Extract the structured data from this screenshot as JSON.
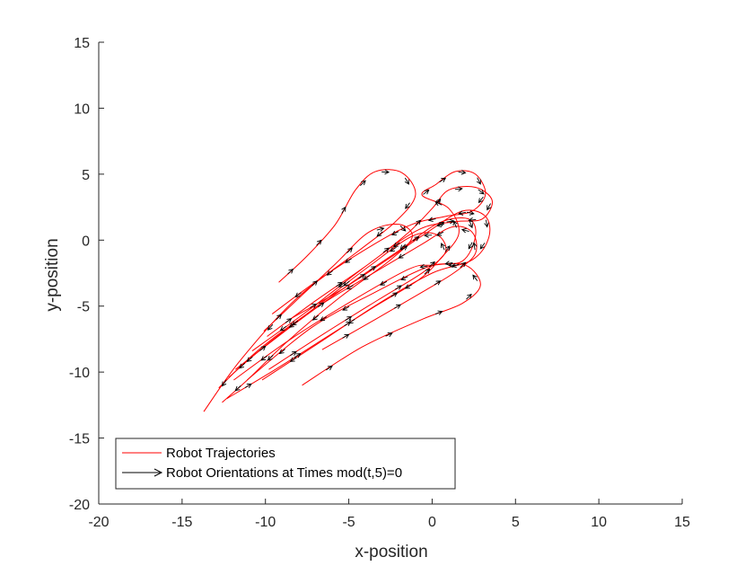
{
  "chart_data": {
    "type": "line",
    "title": "",
    "xlabel": "x-position",
    "ylabel": "y-position",
    "xlim": [
      -20,
      15
    ],
    "ylim": [
      -20,
      15
    ],
    "xticks": [
      "-20",
      "-15",
      "-10",
      "-5",
      "0",
      "5",
      "10",
      "15"
    ],
    "yticks": [
      "-20",
      "-15",
      "-10",
      "-5",
      "0",
      "5",
      "10",
      "15"
    ],
    "xtick_values": [
      -20,
      -15,
      -10,
      -5,
      0,
      5,
      10,
      15
    ],
    "ytick_values": [
      -20,
      -15,
      -10,
      -5,
      0,
      5,
      10,
      15
    ],
    "grid": false,
    "legend": {
      "placement": "bottom-left",
      "entries": [
        "Robot Trajectories",
        "Robot Orientations at Times mod(t,5)=0"
      ]
    },
    "colors": {
      "trajectory": "#ff0000",
      "orientation": "#000000",
      "axis": "#262626"
    },
    "series": [
      {
        "name": "Robot Trajectories",
        "trajectories": [
          [
            [
              -9.2,
              -3.2
            ],
            [
              -7.5,
              -1.2
            ],
            [
              -5.8,
              1.2
            ],
            [
              -4.6,
              3.8
            ],
            [
              -3.4,
              5.2
            ],
            [
              -1.8,
              5.1
            ],
            [
              -1.0,
              3.4
            ],
            [
              -2.2,
              1.4
            ],
            [
              -4.4,
              -0.8
            ],
            [
              -8.2,
              -4.5
            ],
            [
              -11.5,
              -9.1
            ],
            [
              -13.7,
              -13.0
            ]
          ],
          [
            [
              -10.1,
              -6.9
            ],
            [
              -8.0,
              -4.4
            ],
            [
              -5.8,
              -1.8
            ],
            [
              -3.8,
              0.6
            ],
            [
              -2.0,
              1.2
            ],
            [
              -1.2,
              0.2
            ],
            [
              -2.6,
              -1.6
            ],
            [
              -5.6,
              -4.4
            ],
            [
              -8.7,
              -7.7
            ],
            [
              -11.0,
              -10.5
            ],
            [
              -12.6,
              -12.3
            ]
          ],
          [
            [
              -7.8,
              -11.0
            ],
            [
              -4.2,
              -8.1
            ],
            [
              -0.6,
              -6.0
            ],
            [
              1.8,
              -4.8
            ],
            [
              2.9,
              -3.4
            ],
            [
              2.0,
              -1.9
            ],
            [
              0.0,
              -1.9
            ],
            [
              -1.4,
              -2.2
            ],
            [
              -4.8,
              -4.6
            ],
            [
              -8.6,
              -7.6
            ],
            [
              -11.9,
              -10.6
            ]
          ],
          [
            [
              -9.8,
              -9.8
            ],
            [
              -6.5,
              -7.1
            ],
            [
              -3.2,
              -4.5
            ],
            [
              -0.5,
              -2.4
            ],
            [
              0.8,
              -0.9
            ],
            [
              0.3,
              0.4
            ],
            [
              -1.2,
              0.3
            ],
            [
              -3.8,
              -2.0
            ],
            [
              -6.8,
              -4.9
            ],
            [
              -10.0,
              -8.0
            ],
            [
              -12.2,
              -10.4
            ]
          ],
          [
            [
              -11.8,
              -9.8
            ],
            [
              -8.2,
              -6.3
            ],
            [
              -4.8,
              -3.2
            ],
            [
              -2.0,
              -0.8
            ],
            [
              0.4,
              1.3
            ],
            [
              2.2,
              1.6
            ],
            [
              2.6,
              0.3
            ],
            [
              1.8,
              -1.6
            ],
            [
              -0.2,
              -2.0
            ],
            [
              -3.5,
              -4.0
            ],
            [
              -7.2,
              -6.6
            ],
            [
              -11.1,
              -10.6
            ]
          ],
          [
            [
              -8.4,
              -5.9
            ],
            [
              -5.5,
              -3.8
            ],
            [
              -2.6,
              -1.4
            ],
            [
              -0.4,
              0.5
            ],
            [
              1.8,
              2.2
            ],
            [
              3.2,
              1.8
            ],
            [
              3.4,
              0.2
            ],
            [
              2.4,
              -1.5
            ],
            [
              0.0,
              -2.5
            ],
            [
              -3.2,
              -4.8
            ],
            [
              -6.8,
              -7.8
            ],
            [
              -10.2,
              -10.6
            ]
          ],
          [
            [
              -6.6,
              -8.3
            ],
            [
              -3.4,
              -6.0
            ],
            [
              -0.4,
              -3.8
            ],
            [
              1.4,
              -2.4
            ],
            [
              2.6,
              -1.0
            ],
            [
              2.4,
              0.6
            ],
            [
              1.2,
              1.0
            ],
            [
              -0.6,
              -0.3
            ],
            [
              -3.4,
              -2.4
            ],
            [
              -6.8,
              -5.0
            ],
            [
              -10.3,
              -8.2
            ],
            [
              -12.8,
              -11.2
            ]
          ],
          [
            [
              -12.3,
              -12.0
            ],
            [
              -9.4,
              -9.8
            ],
            [
              -6.4,
              -7.4
            ],
            [
              -3.4,
              -5.0
            ],
            [
              -0.8,
              -3.0
            ],
            [
              0.5,
              -1.4
            ],
            [
              1.6,
              0.5
            ],
            [
              1.0,
              2.4
            ],
            [
              -0.6,
              3.4
            ],
            [
              0.2,
              4.2
            ],
            [
              1.4,
              5.2
            ],
            [
              2.6,
              5.0
            ],
            [
              3.2,
              3.5
            ],
            [
              2.4,
              2.2
            ],
            [
              0.8,
              1.8
            ],
            [
              -1.2,
              1.2
            ],
            [
              -3.6,
              -0.4
            ],
            [
              -6.8,
              -3.0
            ],
            [
              -9.6,
              -5.6
            ]
          ],
          [
            [
              -9.9,
              -7.3
            ],
            [
              -7.0,
              -4.6
            ],
            [
              -3.8,
              -1.8
            ],
            [
              -1.4,
              0.6
            ],
            [
              0.0,
              2.4
            ],
            [
              1.0,
              3.8
            ],
            [
              2.6,
              4.0
            ],
            [
              3.6,
              3.0
            ],
            [
              3.0,
              1.6
            ],
            [
              1.4,
              1.4
            ],
            [
              -0.8,
              0.8
            ],
            [
              -3.8,
              -1.8
            ],
            [
              -7.4,
              -5.3
            ],
            [
              -10.8,
              -8.4
            ]
          ]
        ]
      }
    ]
  }
}
